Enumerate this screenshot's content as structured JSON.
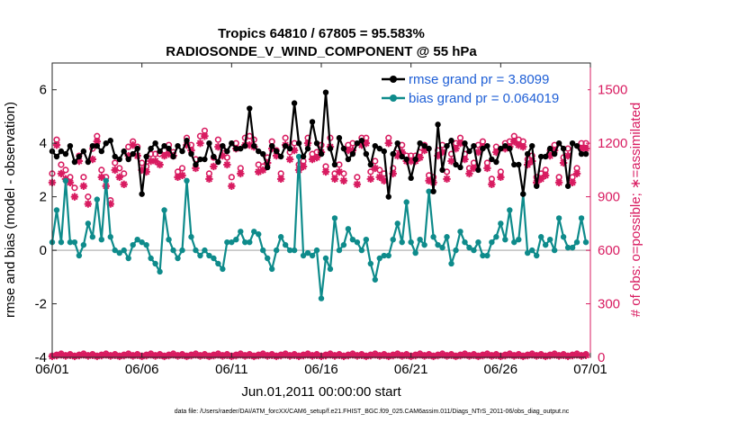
{
  "chart_data": {
    "type": "line",
    "title": [
      "Tropics 64810 / 67805 = 95.583%",
      "RADIOSONDE_V_WIND_COMPONENT @ 55 hPa"
    ],
    "xlabel": "Jun.01,2011 00:00:00 start",
    "ylabel": "rmse and bias (model - observation)",
    "y2label": "# of obs: o=possible; ∗=assimilated",
    "footer": "data file: /Users/raeder/DAI/ATM_forcXX/CAM6_setup/f.e21.FHIST_BGC.f09_025.CAM6assim.011/Diags_NTrS_2011-06/obs_diag_output.nc",
    "xlim": [
      0,
      30
    ],
    "ylim": [
      -4,
      7
    ],
    "y2lim": [
      0,
      1650
    ],
    "xticks": [
      0,
      5,
      10,
      15,
      20,
      25,
      30
    ],
    "xticklabels": [
      "06/01",
      "06/06",
      "06/11",
      "06/16",
      "06/21",
      "06/26",
      "07/01"
    ],
    "yticks": [
      -4,
      -2,
      0,
      2,
      4,
      6
    ],
    "y2ticks": [
      0,
      300,
      600,
      900,
      1200,
      1500
    ],
    "colors": {
      "rmse": "#000000",
      "bias": "#0e8b8b",
      "obs": "#d81b60",
      "legend_text": "#1f5fd6",
      "zero_line": "#c0c0c0"
    },
    "legend": [
      "rmse grand pr = 3.8099",
      "bias grand pr = 0.064019"
    ],
    "x": [
      0.0,
      0.25,
      0.5,
      0.75,
      1.0,
      1.25,
      1.5,
      1.75,
      2.0,
      2.25,
      2.5,
      2.75,
      3.0,
      3.25,
      3.5,
      3.75,
      4.0,
      4.25,
      4.5,
      4.75,
      5.0,
      5.25,
      5.5,
      5.75,
      6.0,
      6.25,
      6.5,
      6.75,
      7.0,
      7.25,
      7.5,
      7.75,
      8.0,
      8.25,
      8.5,
      8.75,
      9.0,
      9.25,
      9.5,
      9.75,
      10.0,
      10.25,
      10.5,
      10.75,
      11.0,
      11.25,
      11.5,
      11.75,
      12.0,
      12.25,
      12.5,
      12.75,
      13.0,
      13.25,
      13.5,
      13.75,
      14.0,
      14.25,
      14.5,
      14.75,
      15.0,
      15.25,
      15.5,
      15.75,
      16.0,
      16.25,
      16.5,
      16.75,
      17.0,
      17.25,
      17.5,
      17.75,
      18.0,
      18.25,
      18.5,
      18.75,
      19.0,
      19.25,
      19.5,
      19.75,
      20.0,
      20.25,
      20.5,
      20.75,
      21.0,
      21.25,
      21.5,
      21.75,
      22.0,
      22.25,
      22.5,
      22.75,
      23.0,
      23.25,
      23.5,
      23.75,
      24.0,
      24.25,
      24.5,
      24.75,
      25.0,
      25.25,
      25.5,
      25.75,
      26.0,
      26.25,
      26.5,
      26.75,
      27.0,
      27.25,
      27.5,
      27.75,
      28.0,
      28.25,
      28.5,
      28.75,
      29.0,
      29.25,
      29.5,
      29.75
    ],
    "series": [
      {
        "name": "rmse",
        "values": [
          3.7,
          3.5,
          3.7,
          3.6,
          3.9,
          3.3,
          3.5,
          3.7,
          3.3,
          3.9,
          3.9,
          3.7,
          4.0,
          4.1,
          3.5,
          3.4,
          3.7,
          3.4,
          3.6,
          3.8,
          2.1,
          3.5,
          3.8,
          4.0,
          3.7,
          3.9,
          3.8,
          3.5,
          3.9,
          3.7,
          4.1,
          3.6,
          3.2,
          3.4,
          3.4,
          4.0,
          3.5,
          3.3,
          3.9,
          3.7,
          4.0,
          3.8,
          3.8,
          3.9,
          5.3,
          3.9,
          3.7,
          3.6,
          3.1,
          3.9,
          3.7,
          3.5,
          3.9,
          3.8,
          5.5,
          4.0,
          3.5,
          3.8,
          4.8,
          4.0,
          3.6,
          5.9,
          3.8,
          3.2,
          4.2,
          3.8,
          3.4,
          3.6,
          4.0,
          4.1,
          3.6,
          3.2,
          3.9,
          3.8,
          3.7,
          2.0,
          3.6,
          4.0,
          3.5,
          3.4,
          2.7,
          3.4,
          4.0,
          3.9,
          3.8,
          2.2,
          4.7,
          3.0,
          3.9,
          4.1,
          3.2,
          3.1,
          4.0,
          3.7,
          3.9,
          3.0,
          3.8,
          3.9,
          3.4,
          3.3,
          3.8,
          3.9,
          3.8,
          3.2,
          3.2,
          2.1,
          3.6,
          3.9,
          2.4,
          3.5,
          3.5,
          3.8,
          3.6,
          4.0,
          3.8,
          2.4,
          4.0,
          3.9,
          3.6,
          3.6
        ]
      },
      {
        "name": "bias",
        "values": [
          0.3,
          1.5,
          0.3,
          2.6,
          0.3,
          0.3,
          -0.2,
          0.2,
          1.0,
          0.5,
          1.9,
          0.4,
          2.6,
          0.5,
          0.0,
          -0.1,
          0.0,
          -0.3,
          0.2,
          0.4,
          0.3,
          0.2,
          -0.3,
          -0.5,
          -0.8,
          1.5,
          0.4,
          0.0,
          -0.3,
          0.0,
          2.6,
          0.5,
          0.0,
          -0.2,
          0.0,
          -0.2,
          -0.3,
          -0.5,
          -0.7,
          0.3,
          0.3,
          0.4,
          0.7,
          0.3,
          0.3,
          0.7,
          0.6,
          0.0,
          -0.3,
          -0.7,
          0.0,
          0.5,
          0.2,
          0.0,
          0.0,
          3.5,
          -0.2,
          -0.1,
          -0.2,
          0.0,
          -1.8,
          -0.3,
          -0.7,
          1.2,
          0.0,
          0.2,
          0.8,
          0.4,
          0.3,
          0.0,
          0.4,
          -0.5,
          -1.1,
          -0.3,
          -0.2,
          -0.2,
          0.4,
          1.0,
          0.3,
          1.8,
          0.3,
          -0.1,
          0.4,
          0.2,
          2.2,
          0.5,
          0.2,
          0.1,
          0.5,
          -0.5,
          0.0,
          0.7,
          0.3,
          0.1,
          0.0,
          0.3,
          -0.2,
          -0.2,
          0.3,
          0.5,
          1.0,
          0.4,
          1.5,
          0.3,
          0.4,
          2.1,
          -0.1,
          0.0,
          -0.2,
          0.5,
          0.2,
          0.4,
          0.0,
          1.2,
          0.5,
          0.1,
          0.1,
          0.3,
          1.2,
          0.3
        ]
      },
      {
        "name": "obs_possible",
        "values": [
          1030,
          1220,
          1080,
          1050,
          1010,
          950,
          1130,
          1010,
          900,
          1170,
          1240,
          1050,
          1010,
          880,
          1090,
          1060,
          1030,
          1180,
          1210,
          1180,
          1090,
          1070,
          1140,
          1140,
          1140,
          1160,
          1190,
          1150,
          1040,
          1060,
          1230,
          1190,
          1110,
          1240,
          1270,
          1030,
          1120,
          1220,
          1170,
          1120,
          1010,
          1200,
          1060,
          1230,
          1240,
          1220,
          1080,
          1070,
          1120,
          1210,
          1160,
          1030,
          1230,
          1150,
          1200,
          1080,
          1100,
          1230,
          1140,
          1150,
          1190,
          1070,
          1230,
          1030,
          1080,
          1030,
          1190,
          1200,
          1010,
          1230,
          1230,
          1040,
          1100,
          1050,
          1030,
          1230,
          1060,
          1170,
          1190,
          1130,
          1130,
          1130,
          1150,
          1190,
          1020,
          1010,
          1160,
          1190,
          1040,
          1140,
          1200,
          1230,
          1140,
          1060,
          1090,
          1190,
          1210,
          1090,
          1000,
          1180,
          1040,
          1200,
          1210,
          1240,
          1220,
          1210,
          1110,
          1130,
          1010,
          1030,
          1050,
          1160,
          1190,
          1010,
          1120,
          1170,
          1010,
          1060,
          1200,
          1200
        ]
      },
      {
        "name": "obs_assimilated",
        "values": [
          980,
          1190,
          1030,
          1000,
          980,
          900,
          1100,
          960,
          860,
          1110,
          1210,
          1010,
          960,
          860,
          1050,
          1010,
          970,
          1130,
          1190,
          1130,
          1050,
          1040,
          1100,
          1100,
          1080,
          1130,
          1140,
          1130,
          1010,
          1020,
          1190,
          1160,
          1060,
          1200,
          1240,
          1000,
          1070,
          1180,
          1130,
          1080,
          960,
          1170,
          1030,
          1190,
          1190,
          1180,
          1040,
          1050,
          1090,
          1170,
          1130,
          1000,
          1190,
          1110,
          1160,
          1050,
          1070,
          1200,
          1110,
          1120,
          1150,
          1040,
          1180,
          1000,
          1040,
          990,
          1160,
          1160,
          970,
          1190,
          1200,
          1000,
          1060,
          1010,
          990,
          1200,
          1030,
          1130,
          1150,
          1100,
          1100,
          1100,
          1120,
          1160,
          990,
          980,
          1130,
          1150,
          1000,
          1100,
          1170,
          1200,
          1110,
          1030,
          1060,
          1150,
          1180,
          1060,
          970,
          1150,
          1010,
          1170,
          1180,
          1210,
          1190,
          1180,
          1080,
          1100,
          980,
          1000,
          1020,
          1130,
          1160,
          980,
          1090,
          1130,
          980,
          1030,
          1170,
          1170
        ]
      }
    ]
  }
}
